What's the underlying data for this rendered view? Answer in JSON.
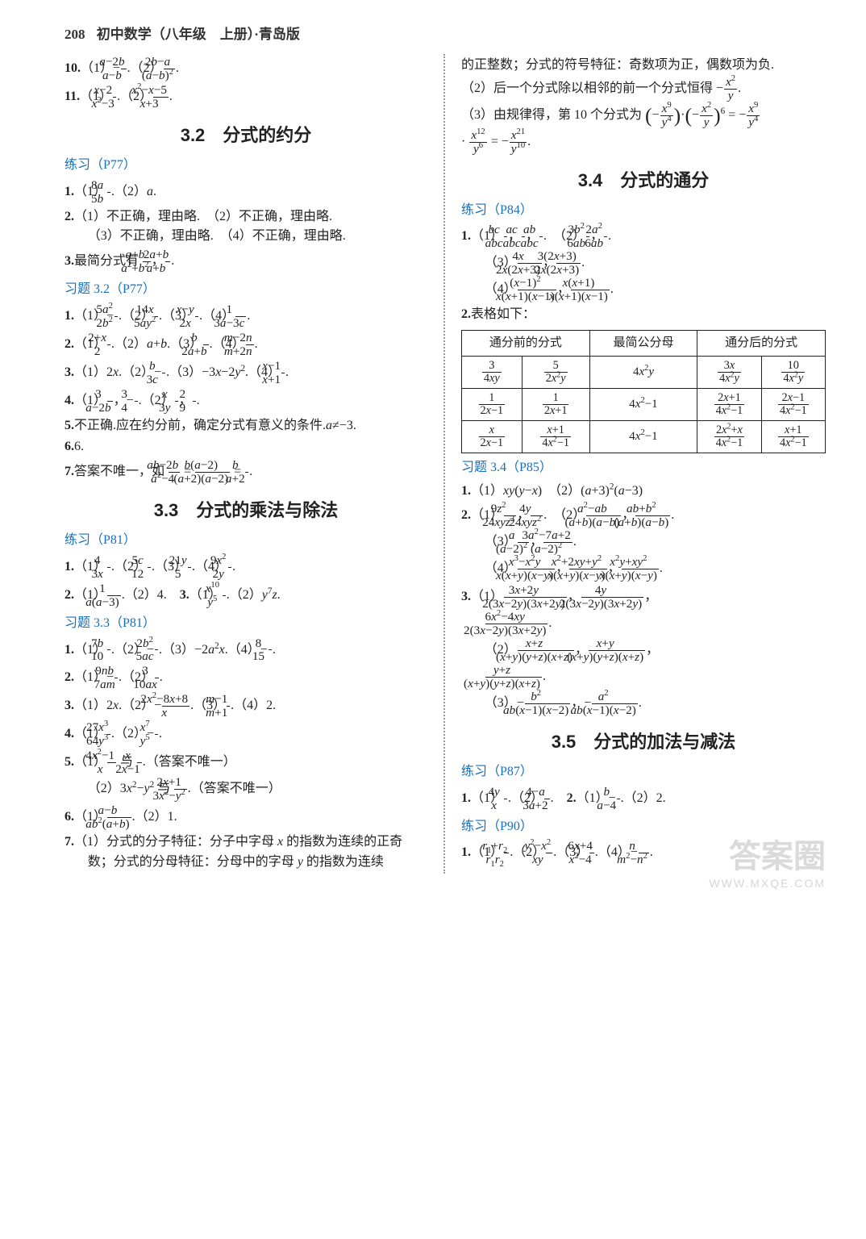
{
  "header": {
    "page_num": "208",
    "title": "初中数学（八年级　上册）·青岛版"
  },
  "watermark": {
    "main": "答案圈",
    "sub": "WWW.MXQE.COM"
  },
  "left": {
    "pre_items": [
      {
        "n": "10.",
        "html": "（1）−<span class='frac'><span class='num'><i>a</i>−2<i>b</i></span><span class='den'><i>a</i>−<i>b</i></span></span>.（2）<span class='frac'><span class='num'>2<i>b</i>−<i>a</i></span><span class='den'>(<i>a</i>−<i>b</i>)<sup>2</sup></span></span>."
      },
      {
        "n": "11.",
        "html": "（1）<span class='frac'><span class='num'><i>x</i>−2</span><span class='den'><i>x</i><sup>2</sup>−3</span></span>.（2）<span class='frac'><span class='num'><i>x</i><sup>2</sup>−<i>x</i>−5</span><span class='den'><i>x</i>+3</span></span>."
      }
    ],
    "s32": {
      "title": "3.2　分式的约分",
      "practice_label": "练习（P77）",
      "practice": [
        {
          "n": "1.",
          "html": "（1）<span class='frac'><span class='num'>8<i>a</i></span><span class='den'>5<i>b</i></span></span>.（2）<i>a</i>."
        },
        {
          "n": "2.",
          "html": "（1）不正确，理由略.　（2）不正确，理由略.<br>（3）不正确，理由略.　（4）不正确，理由略."
        },
        {
          "n": "3.",
          "html": "最简分式有 <span class='frac'><span class='num'><i>a</i>+<i>b</i></span><span class='den'><i>a</i><sup>2</sup>+<i>b</i><sup>2</sup></span></span>，<span class='frac'><span class='num'>2<i>a</i>+<i>b</i></span><span class='den'><i>a</i>+<i>b</i></span></span>."
        }
      ],
      "xiti_label": "习题 3.2（P77）",
      "xiti": [
        {
          "n": "1.",
          "html": "（1）−<span class='frac'><span class='num'>5<i>a</i><sup>2</sup></span><span class='den'>2<i>b</i><sup>2</sup></span></span>.（2）<span class='frac'><span class='num'>14<i>x</i></span><span class='den'>5<i>ay</i><sup>2</sup></span></span>.（3）<span class='frac'><span class='num'><i>x</i>−<i>y</i></span><span class='den'>2<i>x</i></span></span>.（4）<span class='frac'><span class='num'>1</span><span class='den'>3<i>a</i>−3<i>c</i></span></span>."
        },
        {
          "n": "2.",
          "html": "（1）<span class='frac'><span class='num'>2+<i>x</i></span><span class='den'>2</span></span>.（2）<i>a</i>+<i>b</i>.（3）<span class='frac'><span class='num'><i>b</i></span><span class='den'>2<i>a</i>+<i>b</i></span></span>.（4）<span class='frac'><span class='num'><i>m</i>−2<i>n</i></span><span class='den'><i>m</i>+2<i>n</i></span></span>."
        },
        {
          "n": "3.",
          "html": "（1）2<i>x</i>.（2）−<span class='frac'><span class='num'><i>b</i></span><span class='den'>3<i>c</i></span></span>.（3）−3<i>x</i>−2<i>y</i><sup>2</sup>.（4）<span class='frac'><span class='num'><i>x</i>−1</span><span class='den'><i>x</i>+1</span></span>."
        },
        {
          "n": "4.",
          "html": "（1）<span class='frac'><span class='num'>3</span><span class='den'><i>a</i>−2<i>b</i></span></span>，−<span class='frac'><span class='num'>3</span><span class='den'>4</span></span>.（2）<span class='frac'><span class='num'><i>x</i></span><span class='den'>3<i>y</i></span></span>，<span class='frac'><span class='num'>2</span><span class='den'>9</span></span>."
        },
        {
          "n": "5.",
          "html": "不正确.应在约分前，确定分式有意义的条件.<i>a</i>≠−3."
        },
        {
          "n": "6.",
          "html": "6."
        },
        {
          "n": "7.",
          "html": "答案不唯一，如 <span class='frac'><span class='num'><i>ab</i>−2<i>b</i></span><span class='den'><i>a</i><sup>2</sup>−4</span></span> = <span class='frac'><span class='num'><i>b</i>(<i>a</i>−2)</span><span class='den'>(<i>a</i>+2)(<i>a</i>−2)</span></span> = <span class='frac'><span class='num'><i>b</i></span><span class='den'><i>a</i>+2</span></span>."
        }
      ]
    },
    "s33": {
      "title": "3.3　分式的乘法与除法",
      "practice_label": "练习（P81）",
      "practice": [
        {
          "n": "1.",
          "html": "（1）<span class='frac'><span class='num'>4</span><span class='den'>3<i>x</i></span></span>.（2）<span class='frac'><span class='num'>5<i>c</i></span><span class='den'>12</span></span>.（3）<span class='frac'><span class='num'>21<i>y</i></span><span class='den'>5</span></span>.（4）<span class='frac'><span class='num'>9<i>x</i><sup>2</sup></span><span class='den'>2<i>y</i></span></span>."
        },
        {
          "n": "2.",
          "html": "（1）<span class='frac'><span class='num'>1</span><span class='den'><i>a</i>(<i>a</i>−3)</span></span>.（2）4.　<b>3.</b>（1）<span class='frac'><span class='num'><i>x</i><sup>10</sup></span><span class='den'><i>y</i><sup>5</sup></span></span>.（2）<i>y</i><sup>7</sup><i>z</i>."
        }
      ],
      "xiti_label": "习题 3.3（P81）",
      "xiti": [
        {
          "n": "1.",
          "html": "（1）<span class='frac'><span class='num'>7<i>b</i></span><span class='den'>10</span></span>.（2）−<span class='frac'><span class='num'>2<i>b</i><sup>2</sup></span><span class='den'>5<i>ac</i></span></span>.（3）−2<i>a</i><sup>2</sup><i>x</i>.（4）−<span class='frac'><span class='num'>8</span><span class='den'>15</span></span>."
        },
        {
          "n": "2.",
          "html": "（1）−<span class='frac'><span class='num'>9<i>nb</i></span><span class='den'>7<i>am</i></span></span>.（2）<span class='frac'><span class='num'>3</span><span class='den'>10<i>ax</i></span></span>."
        },
        {
          "n": "3.",
          "html": "（1）2<i>x</i>.（2）−<span class='frac'><span class='num'>2<i>x</i><sup>2</sup>−8<i>x</i>+8</span><span class='den'><i>x</i></span></span>.（3）<span class='frac'><span class='num'><i>m</i>−1</span><span class='den'><i>m</i>+1</span></span>.（4）2."
        },
        {
          "n": "4.",
          "html": "（1）<span class='frac'><span class='num'>27<i>x</i><sup>3</sup></span><span class='den'>64<i>y</i><sup>3</sup></span></span>.（2）−<span class='frac'><span class='num'><i>x</i><sup>7</sup></span><span class='den'><i>y</i><sup>5</sup></span></span>."
        },
        {
          "n": "5.",
          "html": "（1）<span class='frac'><span class='num'>4<i>x</i><sup>2</sup>−1</span><span class='den'><i>x</i></span></span> 与 <span class='frac'><span class='num'><i>x</i></span><span class='den'>2<i>x</i>−1</span></span>.（答案不唯一）<br>（2）3<i>x</i><sup>2</sup>−<i>y</i><sup>2</sup> 与 <span class='frac'><span class='num'>2<i>x</i>+1</span><span class='den'>3<i>x</i><sup>2</sup>−<i>y</i><sup>2</sup></span></span>.（答案不唯一）"
        },
        {
          "n": "6.",
          "html": "（1）<span class='frac'><span class='num'><i>a</i>−<i>b</i></span><span class='den'><i>ab</i><sup>2</sup>(<i>a</i>+<i>b</i>)</span></span>.（2）1."
        },
        {
          "n": "7.",
          "html": "（1）分式的分子特征：分子中字母 <i>x</i> 的指数为连续的正奇数；分式的分母特征：分母中的字母 <i>y</i> 的指数为连续"
        }
      ]
    }
  },
  "right": {
    "cont": "的正整数；分式的符号特征：奇数项为正，偶数项为负.<br>（2）后一个分式除以相邻的前一个分式恒得 −<span class='frac'><span class='num'><i>x</i><sup>2</sup></span><span class='den'><i>y</i></span></span>.<br>（3）由规律得，第 10 个分式为 <span class='bigparen'>(</span>−<span class='frac'><span class='num'><i>x</i><sup>9</sup></span><span class='den'><i>y</i><sup>4</sup></span></span><span class='bigparen'>)</span>·<span class='bigparen'>(</span>−<span class='frac'><span class='num'><i>x</i><sup>2</sup></span><span class='den'><i>y</i></span></span><span class='bigparen'>)</span><sup>6</sup> = −<span class='frac'><span class='num'><i>x</i><sup>9</sup></span><span class='den'><i>y</i><sup>4</sup></span></span><br>· <span class='frac'><span class='num'><i>x</i><sup>12</sup></span><span class='den'><i>y</i><sup>6</sup></span></span> = −<span class='frac'><span class='num'><i>x</i><sup>21</sup></span><span class='den'><i>y</i><sup>10</sup></span></span>.",
    "s34": {
      "title": "3.4　分式的通分",
      "practice_label": "练习（P84）",
      "practice": [
        {
          "n": "1.",
          "html": "（1）<span class='frac'><span class='num'><i>bc</i></span><span class='den'><i>abc</i></span></span>，<span class='frac'><span class='num'><i>ac</i></span><span class='den'><i>abc</i></span></span>，<span class='frac'><span class='num'><i>ab</i></span><span class='den'><i>abc</i></span></span>.　（2）<span class='frac'><span class='num'>3<i>b</i><sup>2</sup></span><span class='den'>6<i>ab</i></span></span>，<span class='frac'><span class='num'>2<i>a</i><sup>2</sup></span><span class='den'>6<i>ab</i></span></span>.<br>（3）<span class='frac'><span class='num'>4<i>x</i></span><span class='den'>2<i>x</i>(2<i>x</i>+3)</span></span>，<span class='frac'><span class='num'>3(2<i>x</i>+3)</span><span class='den'>2<i>x</i>(2<i>x</i>+3)</span></span>.<br>（4）<span class='frac'><span class='num'>(<i>x</i>−1)<sup>2</sup></span><span class='den'><i>x</i>(<i>x</i>+1)(<i>x</i>−1)</span></span>，<span class='frac'><span class='num'><i>x</i>(<i>x</i>+1)</span><span class='den'><i>x</i>(<i>x</i>+1)(<i>x</i>−1)</span></span>."
        },
        {
          "n": "2.",
          "html": "表格如下："
        }
      ],
      "table": {
        "headers": [
          "通分前的分式",
          "最简公分母",
          "通分后的分式"
        ],
        "col_spans": [
          2,
          1,
          2
        ],
        "rows": [
          [
            "<span class='frac'><span class='num'>3</span><span class='den'>4<i>xy</i></span></span>",
            "<span class='frac'><span class='num'>5</span><span class='den'>2<i>x</i><sup>2</sup><i>y</i></span></span>",
            "4<i>x</i><sup>2</sup><i>y</i>",
            "<span class='frac'><span class='num'>3<i>x</i></span><span class='den'>4<i>x</i><sup>2</sup><i>y</i></span></span>",
            "<span class='frac'><span class='num'>10</span><span class='den'>4<i>x</i><sup>2</sup><i>y</i></span></span>"
          ],
          [
            "<span class='frac'><span class='num'>1</span><span class='den'>2<i>x</i>−1</span></span>",
            "<span class='frac'><span class='num'>1</span><span class='den'>2<i>x</i>+1</span></span>",
            "4<i>x</i><sup>2</sup>−1",
            "<span class='frac'><span class='num'>2<i>x</i>+1</span><span class='den'>4<i>x</i><sup>2</sup>−1</span></span>",
            "<span class='frac'><span class='num'>2<i>x</i>−1</span><span class='den'>4<i>x</i><sup>2</sup>−1</span></span>"
          ],
          [
            "<span class='frac'><span class='num'><i>x</i></span><span class='den'>2<i>x</i>−1</span></span>",
            "<span class='frac'><span class='num'><i>x</i>+1</span><span class='den'>4<i>x</i><sup>2</sup>−1</span></span>",
            "4<i>x</i><sup>2</sup>−1",
            "<span class='frac'><span class='num'>2<i>x</i><sup>2</sup>+<i>x</i></span><span class='den'>4<i>x</i><sup>2</sup>−1</span></span>",
            "<span class='frac'><span class='num'><i>x</i>+1</span><span class='den'>4<i>x</i><sup>2</sup>−1</span></span>"
          ]
        ]
      },
      "xiti_label": "习题 3.4（P85）",
      "xiti": [
        {
          "n": "1.",
          "html": "（1）<i>xy</i>(<i>y</i>−<i>x</i>)　（2）(<i>a</i>+3)<sup>2</sup>(<i>a</i>−3)"
        },
        {
          "n": "2.",
          "html": "（1）<span class='frac'><span class='num'>9<i>z</i><sup>2</sup></span><span class='den'>24<i>xyz</i><sup>2</sup></span></span>，<span class='frac'><span class='num'>4<i>y</i></span><span class='den'>24<i>xyz</i><sup>2</sup></span></span>.　（2）<span class='frac'><span class='num'><i>a</i><sup>2</sup>−<i>ab</i></span><span class='den'>(<i>a</i>+<i>b</i>)(<i>a</i>−<i>b</i>)</span></span>，<span class='frac'><span class='num'><i>ab</i>+<i>b</i><sup>2</sup></span><span class='den'>(<i>a</i>+<i>b</i>)(<i>a</i>−<i>b</i>)</span></span>.<br>（3）<span class='frac'><span class='num'><i>a</i></span><span class='den'>(<i>a</i>−2)<sup>2</sup></span></span>，<span class='frac'><span class='num'>3<i>a</i><sup>2</sup>−7<i>a</i>+2</span><span class='den'>(<i>a</i>−2)<sup>2</sup></span></span>.<br>（4）<span class='frac'><span class='num'><i>x</i><sup>3</sup>−<i>x</i><sup>2</sup><i>y</i></span><span class='den'><i>x</i>(<i>x</i>+<i>y</i>)(<i>x</i>−<i>y</i>)</span></span>，<span class='frac'><span class='num'><i>x</i><sup>2</sup>+2<i>xy</i>+<i>y</i><sup>2</sup></span><span class='den'><i>x</i>(<i>x</i>+<i>y</i>)(<i>x</i>−<i>y</i>)</span></span>，<span class='frac'><span class='num'><i>x</i><sup>2</sup><i>y</i>+<i>xy</i><sup>2</sup></span><span class='den'><i>x</i>(<i>x</i>+<i>y</i>)(<i>x</i>−<i>y</i>)</span></span>."
        },
        {
          "n": "3.",
          "html": "（1）<span class='frac'><span class='num'>3<i>x</i>+2<i>y</i></span><span class='den'>2(3<i>x</i>−2<i>y</i>)(3<i>x</i>+2<i>y</i>)</span></span>，<span class='frac'><span class='num'>4<i>y</i></span><span class='den'>2(3<i>x</i>−2<i>y</i>)(3<i>x</i>+2<i>y</i>)</span></span>，<br><span class='frac'><span class='num'>6<i>x</i><sup>2</sup>−4<i>xy</i></span><span class='den'>2(3<i>x</i>−2<i>y</i>)(3<i>x</i>+2<i>y</i>)</span></span>.<br>（2）<span class='frac'><span class='num'><i>x</i>+<i>z</i></span><span class='den'>(<i>x</i>+<i>y</i>)(<i>y</i>+<i>z</i>)(<i>x</i>+<i>z</i>)</span></span>，<span class='frac'><span class='num'><i>x</i>+<i>y</i></span><span class='den'>(<i>x</i>+<i>y</i>)(<i>y</i>+<i>z</i>)(<i>x</i>+<i>z</i>)</span></span>，<br><span class='frac'><span class='num'><i>y</i>+<i>z</i></span><span class='den'>(<i>x</i>+<i>y</i>)(<i>y</i>+<i>z</i>)(<i>x</i>+<i>z</i>)</span></span>.<br>（3）−<span class='frac'><span class='num'><i>b</i><sup>2</sup></span><span class='den'><i>ab</i>(<i>x</i>−1)(<i>x</i>−2)</span></span>，−<span class='frac'><span class='num'><i>a</i><sup>2</sup></span><span class='den'><i>ab</i>(<i>x</i>−1)(<i>x</i>−2)</span></span>."
        }
      ]
    },
    "s35": {
      "title": "3.5　分式的加法与减法",
      "practice_label": "练习（P87）",
      "practice": [
        {
          "n": "1.",
          "html": "（1）<span class='frac'><span class='num'>4<i>y</i></span><span class='den'><i>x</i></span></span>.（2）<span class='frac'><span class='num'>4−<i>a</i></span><span class='den'>3<i>a</i>+2</span></span>.　<b>2.</b>（1）−<span class='frac'><span class='num'><i>b</i></span><span class='den'><i>a</i>−4</span></span>.（2）2."
        }
      ],
      "practice2_label": "练习（P90）",
      "practice2": [
        {
          "n": "1.",
          "html": "（1）<span class='frac'><span class='num'><i>r</i><sub>1</sub>+<i>r</i><sub>2</sub></span><span class='den'><i>r</i><sub>1</sub><i>r</i><sub>2</sub></span></span>.（2）<span class='frac'><span class='num'><i>y</i><sup>2</sup>−<i>x</i><sup>2</sup></span><span class='den'><i>xy</i></span></span>.（3）<span class='frac'><span class='num'>6<i>x</i>+4</span><span class='den'><i>x</i><sup>2</sup>−4</span></span>.（4）−<span class='frac'><span class='num'><i>n</i></span><span class='den'><i>m</i><sup>2</sup>−<i>n</i><sup>2</sup></span></span>."
        }
      ]
    }
  }
}
